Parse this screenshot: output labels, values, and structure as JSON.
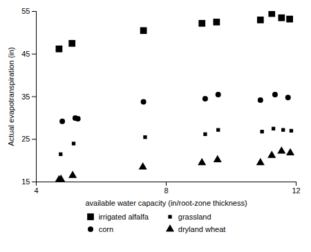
{
  "chart_data": {
    "type": "scatter",
    "xlabel": "available water capacity (in/root-zone thickness)",
    "ylabel": "Actual evapotranspiration (in)",
    "xlim": [
      4.0,
      12.0
    ],
    "ylim": [
      15.0,
      55.0
    ],
    "xticks": [
      4,
      8,
      12
    ],
    "yticks": [
      15,
      25,
      35,
      45,
      55
    ],
    "grid": false,
    "legend": "bottom",
    "series": [
      {
        "name": "irrigated alfalfa",
        "color": "black",
        "marker": "square",
        "x": [
          4.7,
          5.1,
          7.3,
          9.1,
          9.55,
          10.9,
          11.25,
          11.55,
          11.8
        ],
        "y": [
          46.2,
          47.5,
          50.5,
          52.2,
          52.5,
          53.0,
          54.5,
          53.5,
          53.2
        ]
      },
      {
        "name": "grassland",
        "color": "black",
        "marker": "square",
        "x": [
          4.75,
          5.15,
          7.35,
          9.2,
          9.6,
          10.95,
          11.3,
          11.6,
          11.85
        ],
        "y": [
          21.5,
          24.0,
          25.5,
          26.2,
          27.2,
          26.8,
          27.5,
          27.2,
          27.0
        ]
      },
      {
        "name": "corn",
        "color": "black",
        "marker": "circle",
        "x": [
          4.8,
          5.2,
          5.28,
          7.3,
          9.2,
          9.6,
          10.9,
          11.35,
          11.75
        ],
        "y": [
          29.2,
          30.0,
          29.8,
          33.8,
          34.5,
          35.5,
          34.2,
          35.5,
          34.8
        ]
      },
      {
        "name": "dryland wheat",
        "color": "black",
        "marker": "triangle",
        "x": [
          4.7,
          4.76,
          5.12,
          7.28,
          9.1,
          9.58,
          10.9,
          11.25,
          11.55,
          11.82
        ],
        "y": [
          15.5,
          15.6,
          16.5,
          18.5,
          19.5,
          20.2,
          19.5,
          21.2,
          22.2,
          21.8
        ]
      }
    ]
  }
}
